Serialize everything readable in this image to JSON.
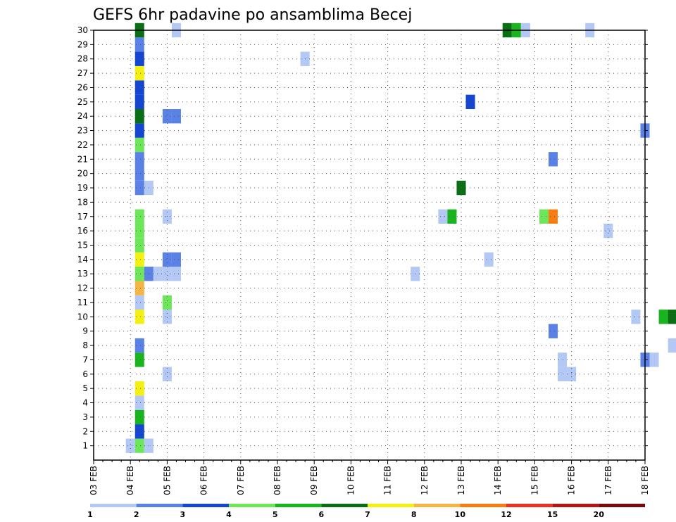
{
  "chart_data": {
    "type": "heatmap",
    "title": "GEFS 6hr padavine po ansamblima Becej",
    "x_ticks": [
      "03 FEB",
      "04 FEB",
      "05 FEB",
      "06 FEB",
      "07 FEB",
      "08 FEB",
      "09 FEB",
      "10 FEB",
      "11 FEB",
      "12 FEB",
      "13 FEB",
      "14 FEB",
      "15 FEB",
      "16 FEB",
      "17 FEB",
      "18 FEB"
    ],
    "y_ticks": [
      "1",
      "2",
      "3",
      "4",
      "5",
      "6",
      "7",
      "8",
      "9",
      "10",
      "11",
      "12",
      "13",
      "14",
      "15",
      "16",
      "17",
      "18",
      "19",
      "20",
      "21",
      "22",
      "23",
      "24",
      "25",
      "26",
      "27",
      "28",
      "29",
      "30"
    ],
    "xlim": [
      "03 FEB 00z",
      "18 FEB 00z"
    ],
    "ylim": [
      0,
      30
    ],
    "grid": true,
    "colorbar": {
      "position": "bottom",
      "labels": [
        "1",
        "2",
        "3",
        "4",
        "5",
        "6",
        "7",
        "8",
        "10",
        "12",
        "15",
        "20"
      ],
      "colors": [
        "#b4c8f5",
        "#5a82e6",
        "#1446d2",
        "#6ee65a",
        "#19b41e",
        "#0a6e14",
        "#f5f014",
        "#f5b446",
        "#f57d14",
        "#e6321e",
        "#b41414",
        "#780a0a"
      ]
    },
    "cells": [
      {
        "m": 1,
        "t": "04 FEB 00z",
        "c": "#b4c8f5"
      },
      {
        "m": 1,
        "t": "04 FEB 06z",
        "c": "#6ee65a"
      },
      {
        "m": 1,
        "t": "04 FEB 12z",
        "c": "#b4c8f5"
      },
      {
        "m": 2,
        "t": "04 FEB 06z",
        "c": "#1446d2"
      },
      {
        "m": 3,
        "t": "04 FEB 06z",
        "c": "#19b41e"
      },
      {
        "m": 4,
        "t": "04 FEB 06z",
        "c": "#b4c8f5"
      },
      {
        "m": 5,
        "t": "04 FEB 06z",
        "c": "#f5f014"
      },
      {
        "m": 6,
        "t": "05 FEB 00z",
        "c": "#b4c8f5"
      },
      {
        "m": 7,
        "t": "04 FEB 06z",
        "c": "#19b41e"
      },
      {
        "m": 8,
        "t": "04 FEB 06z",
        "c": "#5a82e6"
      },
      {
        "m": 10,
        "t": "04 FEB 06z",
        "c": "#f5f014"
      },
      {
        "m": 10,
        "t": "05 FEB 00z",
        "c": "#b4c8f5"
      },
      {
        "m": 11,
        "t": "04 FEB 06z",
        "c": "#b4c8f5"
      },
      {
        "m": 11,
        "t": "05 FEB 00z",
        "c": "#6ee65a"
      },
      {
        "m": 12,
        "t": "04 FEB 06z",
        "c": "#f5b446"
      },
      {
        "m": 13,
        "t": "04 FEB 06z",
        "c": "#6ee65a"
      },
      {
        "m": 13,
        "t": "04 FEB 12z",
        "c": "#5a82e6"
      },
      {
        "m": 13,
        "t": "04 FEB 18z",
        "c": "#b4c8f5"
      },
      {
        "m": 13,
        "t": "05 FEB 00z",
        "c": "#b4c8f5"
      },
      {
        "m": 13,
        "t": "05 FEB 06z",
        "c": "#b4c8f5"
      },
      {
        "m": 14,
        "t": "04 FEB 06z",
        "c": "#f5f014"
      },
      {
        "m": 14,
        "t": "05 FEB 00z",
        "c": "#5a82e6"
      },
      {
        "m": 14,
        "t": "05 FEB 06z",
        "c": "#5a82e6"
      },
      {
        "m": 15,
        "t": "04 FEB 06z",
        "c": "#6ee65a"
      },
      {
        "m": 16,
        "t": "04 FEB 06z",
        "c": "#6ee65a"
      },
      {
        "m": 17,
        "t": "04 FEB 06z",
        "c": "#6ee65a"
      },
      {
        "m": 17,
        "t": "05 FEB 00z",
        "c": "#b4c8f5"
      },
      {
        "m": 19,
        "t": "04 FEB 06z",
        "c": "#5a82e6"
      },
      {
        "m": 19,
        "t": "04 FEB 12z",
        "c": "#b4c8f5"
      },
      {
        "m": 20,
        "t": "04 FEB 06z",
        "c": "#5a82e6"
      },
      {
        "m": 21,
        "t": "04 FEB 06z",
        "c": "#5a82e6"
      },
      {
        "m": 22,
        "t": "04 FEB 06z",
        "c": "#6ee65a"
      },
      {
        "m": 23,
        "t": "04 FEB 06z",
        "c": "#1446d2"
      },
      {
        "m": 24,
        "t": "04 FEB 06z",
        "c": "#0a6e14"
      },
      {
        "m": 24,
        "t": "05 FEB 00z",
        "c": "#5a82e6"
      },
      {
        "m": 24,
        "t": "05 FEB 06z",
        "c": "#5a82e6"
      },
      {
        "m": 25,
        "t": "04 FEB 06z",
        "c": "#1446d2"
      },
      {
        "m": 26,
        "t": "04 FEB 06z",
        "c": "#1446d2"
      },
      {
        "m": 27,
        "t": "04 FEB 06z",
        "c": "#f5f014"
      },
      {
        "m": 28,
        "t": "04 FEB 06z",
        "c": "#1446d2"
      },
      {
        "m": 29,
        "t": "04 FEB 06z",
        "c": "#5a82e6"
      },
      {
        "m": 30,
        "t": "04 FEB 06z",
        "c": "#0a6e14"
      },
      {
        "m": 30,
        "t": "05 FEB 06z",
        "c": "#b4c8f5"
      },
      {
        "m": 28,
        "t": "08 FEB 18z",
        "c": "#b4c8f5"
      },
      {
        "m": 13,
        "t": "11 FEB 18z",
        "c": "#b4c8f5"
      },
      {
        "m": 17,
        "t": "12 FEB 12z",
        "c": "#b4c8f5"
      },
      {
        "m": 17,
        "t": "12 FEB 18z",
        "c": "#19b41e"
      },
      {
        "m": 19,
        "t": "13 FEB 00z",
        "c": "#0a6e14"
      },
      {
        "m": 25,
        "t": "13 FEB 06z",
        "c": "#1446d2"
      },
      {
        "m": 14,
        "t": "13 FEB 18z",
        "c": "#b4c8f5"
      },
      {
        "m": 30,
        "t": "14 FEB 06z",
        "c": "#0a6e14"
      },
      {
        "m": 30,
        "t": "14 FEB 12z",
        "c": "#19b41e"
      },
      {
        "m": 30,
        "t": "14 FEB 18z",
        "c": "#b4c8f5"
      },
      {
        "m": 17,
        "t": "15 FEB 06z",
        "c": "#6ee65a"
      },
      {
        "m": 17,
        "t": "15 FEB 12z",
        "c": "#f57d14"
      },
      {
        "m": 21,
        "t": "15 FEB 12z",
        "c": "#5a82e6"
      },
      {
        "m": 9,
        "t": "15 FEB 12z",
        "c": "#5a82e6"
      },
      {
        "m": 6,
        "t": "15 FEB 18z",
        "c": "#b4c8f5"
      },
      {
        "m": 7,
        "t": "15 FEB 18z",
        "c": "#b4c8f5"
      },
      {
        "m": 6,
        "t": "16 FEB 00z",
        "c": "#b4c8f5"
      },
      {
        "m": 30,
        "t": "16 FEB 12z",
        "c": "#b4c8f5"
      },
      {
        "m": 16,
        "t": "17 FEB 00z",
        "c": "#b4c8f5"
      },
      {
        "m": 10,
        "t": "17 FEB 18z",
        "c": "#b4c8f5"
      },
      {
        "m": 23,
        "t": "18 FEB 00z",
        "c": "#5a82e6"
      },
      {
        "m": 7,
        "t": "18 FEB 00z",
        "c": "#5a82e6"
      },
      {
        "m": 7,
        "t": "18 FEB 06z",
        "c": "#b4c8f5"
      },
      {
        "m": 10,
        "t": "18 FEB 12z",
        "c": "#19b41e"
      },
      {
        "m": 10,
        "t": "18 FEB 18z",
        "c": "#0a6e14"
      },
      {
        "m": 8,
        "t": "18 FEB 18z",
        "c": "#b4c8f5"
      }
    ]
  }
}
